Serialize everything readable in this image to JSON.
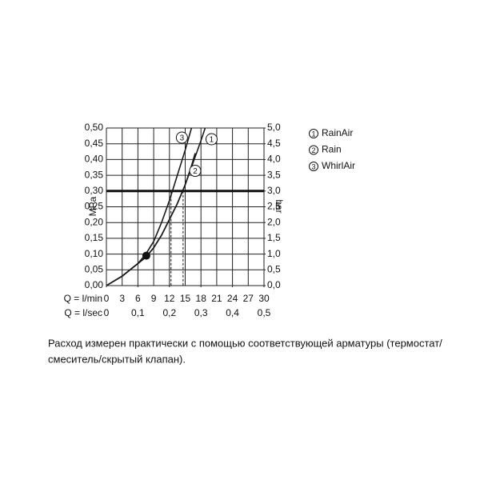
{
  "chart_data": {
    "type": "line",
    "xlabel": "Q = l/min",
    "x2label": "Q = l/sec",
    "ylabel": "MPa",
    "y2label": "bar",
    "xlim": [
      0,
      30
    ],
    "xticks": [
      0,
      3,
      6,
      9,
      12,
      15,
      18,
      21,
      24,
      27,
      30
    ],
    "x2lim": [
      0,
      0.5
    ],
    "x2ticks": [
      0,
      {
        "value": 0.1,
        "label": "0,1"
      },
      {
        "value": 0.2,
        "label": "0,2"
      },
      {
        "value": 0.3,
        "label": "0,3"
      },
      {
        "value": 0.4,
        "label": "0,4"
      },
      {
        "value": 0.5,
        "label": "0,5"
      }
    ],
    "ylim": [
      0,
      0.5
    ],
    "yticks": [
      {
        "value": 0,
        "label": "0,00"
      },
      {
        "value": 0.05,
        "label": "0,05"
      },
      {
        "value": 0.1,
        "label": "0,10"
      },
      {
        "value": 0.15,
        "label": "0,15"
      },
      {
        "value": 0.2,
        "label": "0,20"
      },
      {
        "value": 0.25,
        "label": "0,25"
      },
      {
        "value": 0.3,
        "label": "0,30"
      },
      {
        "value": 0.35,
        "label": "0,35"
      },
      {
        "value": 0.4,
        "label": "0,40"
      },
      {
        "value": 0.45,
        "label": "0,45"
      },
      {
        "value": 0.5,
        "label": "0,50"
      }
    ],
    "y2lim": [
      0,
      5
    ],
    "y2ticks": [
      {
        "value": 0,
        "label": "0,0"
      },
      {
        "value": 0.5,
        "label": "0,5"
      },
      {
        "value": 1,
        "label": "1,0"
      },
      {
        "value": 1.5,
        "label": "1,5"
      },
      {
        "value": 2,
        "label": "2,0"
      },
      {
        "value": 2.5,
        "label": "2,5"
      },
      {
        "value": 3,
        "label": "3,0"
      },
      {
        "value": 3.5,
        "label": "3,5"
      },
      {
        "value": 4,
        "label": "4,0"
      },
      {
        "value": 4.5,
        "label": "4,5"
      },
      {
        "value": 5,
        "label": "5,0"
      }
    ],
    "grid": true,
    "highlight_y": 0.3,
    "dashed_x": [
      12.3,
      14.6
    ],
    "points": {
      "x": [
        7.6
      ],
      "y": [
        0.095
      ]
    },
    "series": [
      {
        "id": "1",
        "name": "RainAir",
        "color": "#1a1a1a",
        "x": [
          0,
          3,
          6,
          7.5,
          9,
          10.5,
          12,
          13.5,
          15,
          16.5,
          18,
          18.8
        ],
        "values": [
          0,
          0.03,
          0.07,
          0.09,
          0.12,
          0.16,
          0.21,
          0.26,
          0.32,
          0.39,
          0.46,
          0.5
        ]
      },
      {
        "id": "2",
        "name": "Rain",
        "color": "#1a1a1a",
        "x": [
          0,
          3,
          6,
          7.5,
          9,
          10.5,
          12,
          13.5,
          15,
          16.2,
          16.9
        ],
        "values": [
          0,
          0.03,
          0.07,
          0.09,
          0.12,
          0.16,
          0.21,
          0.26,
          0.32,
          0.38,
          0.42
        ]
      },
      {
        "id": "3",
        "name": "WhirlAir",
        "color": "#1a1a1a",
        "x": [
          0,
          3,
          6,
          7.5,
          9,
          10.5,
          12,
          13.5,
          15,
          16.2
        ],
        "values": [
          0,
          0.03,
          0.07,
          0.1,
          0.14,
          0.2,
          0.27,
          0.35,
          0.43,
          0.5
        ]
      }
    ],
    "note": [
      "Расход измерен практически с помощью соответствующей арматуры (термостат/",
      "смеситель/скрытый клапан)."
    ]
  }
}
